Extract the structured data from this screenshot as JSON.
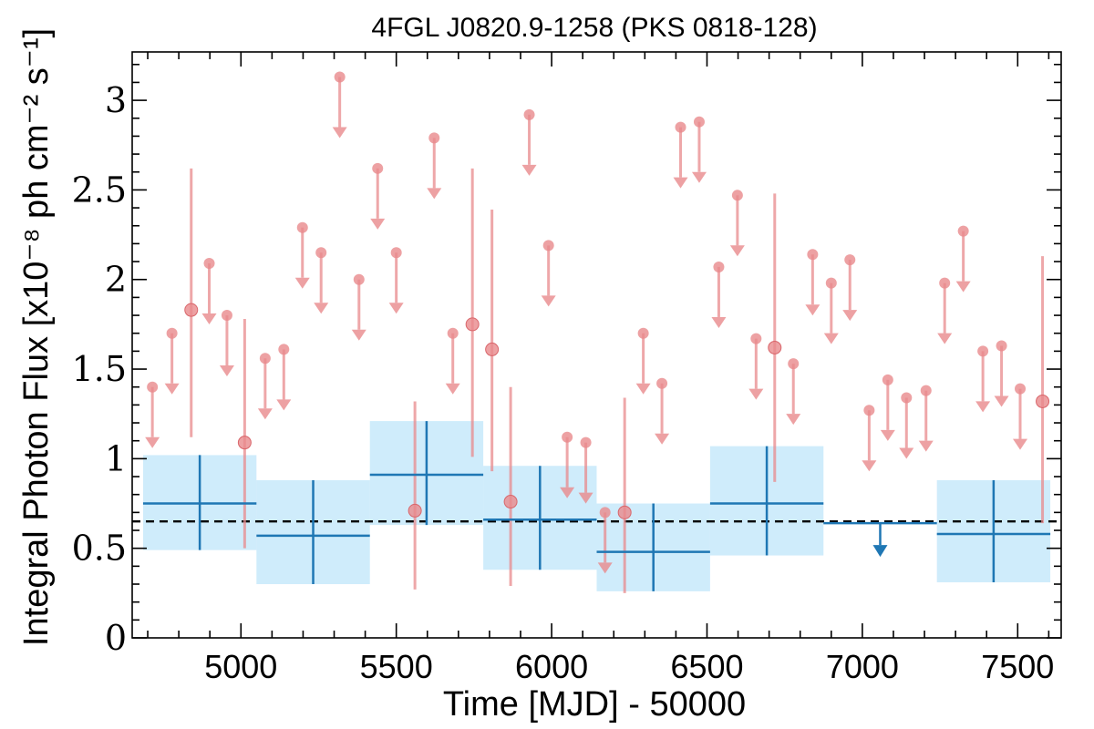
{
  "colors": {
    "short_bin": "#e8898c",
    "long_bin": "#1f77b4",
    "long_bin_band": "#a8dcf8",
    "mean_line": "#000000"
  },
  "chart_data": {
    "type": "scatter",
    "title": "4FGL J0820.9-1258 (PKS 0818-128)",
    "xlabel": "Time [MJD] - 50000",
    "ylabel": "Integral Photon Flux [x10⁻⁸ ph cm⁻² s⁻¹]",
    "xlim": [
      4650,
      7640
    ],
    "ylim": [
      0,
      3.27
    ],
    "xticks": [
      5000,
      5500,
      6000,
      6500,
      7000,
      7500
    ],
    "xtick_labels": [
      "5000",
      "5500",
      "6000",
      "6500",
      "7000",
      "7500"
    ],
    "yticks": [
      0,
      0.5,
      1,
      1.5,
      2,
      2.5,
      3
    ],
    "ytick_labels": [
      "0",
      "0.5",
      "1",
      "1.5",
      "2",
      "2.5",
      "3"
    ],
    "grid": false,
    "mean_flux": 0.65,
    "short_bins": {
      "detections": [
        {
          "x": 4840,
          "y": 1.83,
          "ylo": 1.12,
          "yhi": 2.62
        },
        {
          "x": 5012,
          "y": 1.09,
          "ylo": 0.5,
          "yhi": 1.78
        },
        {
          "x": 5560,
          "y": 0.71,
          "ylo": 0.27,
          "yhi": 1.32
        },
        {
          "x": 5745,
          "y": 1.75,
          "ylo": 1.01,
          "yhi": 2.62
        },
        {
          "x": 5808,
          "y": 1.61,
          "ylo": 0.93,
          "yhi": 2.39
        },
        {
          "x": 5868,
          "y": 0.76,
          "ylo": 0.29,
          "yhi": 1.4
        },
        {
          "x": 6235,
          "y": 0.7,
          "ylo": 0.25,
          "yhi": 1.34
        },
        {
          "x": 6718,
          "y": 1.62,
          "ylo": 0.87,
          "yhi": 2.48
        },
        {
          "x": 7580,
          "y": 1.32,
          "ylo": 0.64,
          "yhi": 2.13
        }
      ],
      "upper_limits": [
        {
          "x": 4715,
          "y": 1.4
        },
        {
          "x": 4778,
          "y": 1.7
        },
        {
          "x": 4898,
          "y": 2.09
        },
        {
          "x": 4955,
          "y": 1.8
        },
        {
          "x": 5078,
          "y": 1.56
        },
        {
          "x": 5138,
          "y": 1.61
        },
        {
          "x": 5198,
          "y": 2.29
        },
        {
          "x": 5258,
          "y": 2.15
        },
        {
          "x": 5318,
          "y": 3.13
        },
        {
          "x": 5380,
          "y": 2.0
        },
        {
          "x": 5440,
          "y": 2.62
        },
        {
          "x": 5500,
          "y": 2.15
        },
        {
          "x": 5622,
          "y": 2.79
        },
        {
          "x": 5682,
          "y": 1.7
        },
        {
          "x": 5928,
          "y": 2.92
        },
        {
          "x": 5990,
          "y": 2.19
        },
        {
          "x": 6050,
          "y": 1.12
        },
        {
          "x": 6110,
          "y": 1.09
        },
        {
          "x": 6172,
          "y": 0.7
        },
        {
          "x": 6295,
          "y": 1.7
        },
        {
          "x": 6355,
          "y": 1.42
        },
        {
          "x": 6415,
          "y": 2.85
        },
        {
          "x": 6475,
          "y": 2.88
        },
        {
          "x": 6538,
          "y": 2.07
        },
        {
          "x": 6598,
          "y": 2.47
        },
        {
          "x": 6658,
          "y": 1.67
        },
        {
          "x": 6778,
          "y": 1.53
        },
        {
          "x": 6840,
          "y": 2.14
        },
        {
          "x": 6900,
          "y": 1.98
        },
        {
          "x": 6960,
          "y": 2.11
        },
        {
          "x": 7022,
          "y": 1.27
        },
        {
          "x": 7082,
          "y": 1.44
        },
        {
          "x": 7142,
          "y": 1.34
        },
        {
          "x": 7205,
          "y": 1.38
        },
        {
          "x": 7265,
          "y": 1.98
        },
        {
          "x": 7325,
          "y": 2.27
        },
        {
          "x": 7388,
          "y": 1.6
        },
        {
          "x": 7448,
          "y": 1.63
        },
        {
          "x": 7508,
          "y": 1.39
        }
      ]
    },
    "long_bins": {
      "detections": [
        {
          "x0": 4685,
          "x1": 5050,
          "y": 0.75,
          "ylo": 0.49,
          "yhi": 1.02
        },
        {
          "x0": 5050,
          "x1": 5415,
          "y": 0.57,
          "ylo": 0.3,
          "yhi": 0.88
        },
        {
          "x0": 5415,
          "x1": 5780,
          "y": 0.91,
          "ylo": 0.63,
          "yhi": 1.21
        },
        {
          "x0": 5780,
          "x1": 6145,
          "y": 0.66,
          "ylo": 0.38,
          "yhi": 0.96
        },
        {
          "x0": 6145,
          "x1": 6510,
          "y": 0.48,
          "ylo": 0.26,
          "yhi": 0.75
        },
        {
          "x0": 6510,
          "x1": 6875,
          "y": 0.75,
          "ylo": 0.46,
          "yhi": 1.07
        },
        {
          "x0": 7240,
          "x1": 7605,
          "y": 0.58,
          "ylo": 0.31,
          "yhi": 0.88
        }
      ],
      "upper_limits": [
        {
          "x0": 6875,
          "x1": 7240,
          "y": 0.64
        }
      ]
    }
  }
}
